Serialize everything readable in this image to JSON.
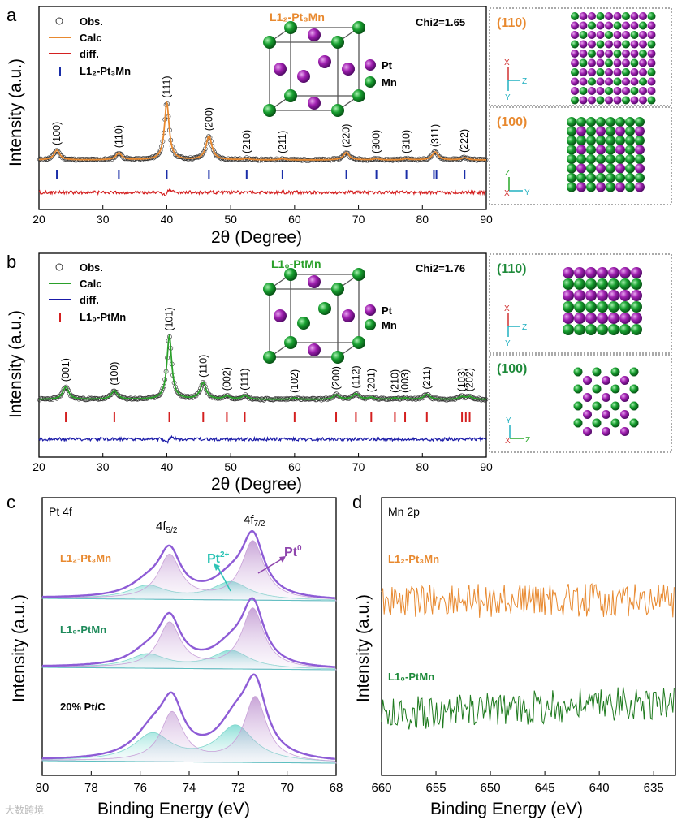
{
  "panels": {
    "a": {
      "letter": "a",
      "title": "L1₂-Pt₃Mn",
      "chi2": "Chi2=1.65",
      "legend": [
        "Obs.",
        "Calc",
        "diff.",
        "L1₂-Pt₃Mn"
      ],
      "atoms": [
        "Pt",
        "Mn"
      ],
      "views": [
        {
          "label": "(110)",
          "axes": [
            "X",
            "Z",
            "Y"
          ]
        },
        {
          "label": "(100)",
          "axes": [
            "Z",
            "X",
            "Y"
          ]
        }
      ]
    },
    "b": {
      "letter": "b",
      "title": "L1₀-PtMn",
      "chi2": "Chi2=1.76",
      "legend": [
        "Obs.",
        "Calc",
        "diff.",
        "L1₀-PtMn"
      ],
      "atoms": [
        "Pt",
        "Mn"
      ],
      "views": [
        {
          "label": "(110)",
          "axes": [
            "X",
            "Z",
            "Y"
          ]
        },
        {
          "label": "(100)",
          "axes": [
            "Y",
            "X",
            "Z"
          ]
        }
      ]
    },
    "c": {
      "letter": "c",
      "title": "Pt 4f",
      "samples": [
        "L1₂-Pt₃Mn",
        "L1₀-PtMn",
        "20% Pt/C"
      ],
      "labels": [
        "4f5/2",
        "4f7/2",
        "Pt2+",
        "Pt0"
      ]
    },
    "d": {
      "letter": "d",
      "title": "Mn 2p",
      "samples": [
        "L1₂-Pt₃Mn",
        "L1₀-PtMn"
      ]
    }
  },
  "watermark": "大数跨境",
  "chart_data": [
    {
      "panel": "a",
      "type": "line",
      "title": "L1₂-Pt₃Mn",
      "xlabel": "2θ (Degree)",
      "ylabel": "Intensity (a.u.)",
      "xlim": [
        20,
        90
      ],
      "xticks": [
        20,
        30,
        40,
        50,
        60,
        70,
        80,
        90
      ],
      "annotation": "Chi2=1.65",
      "series": [
        {
          "name": "Obs.",
          "color": "#222222"
        },
        {
          "name": "Calc",
          "color": "#e8892f"
        },
        {
          "name": "diff.",
          "color": "#d42020"
        },
        {
          "name": "L1₂-Pt₃Mn",
          "color": "#1a2ea8"
        }
      ],
      "peaks": [
        {
          "hkl": "(100)",
          "x": 22.8,
          "h": 0.17
        },
        {
          "hkl": "(110)",
          "x": 32.5,
          "h": 0.12
        },
        {
          "hkl": "(111)",
          "x": 40.0,
          "h": 1.0
        },
        {
          "hkl": "(200)",
          "x": 46.6,
          "h": 0.42
        },
        {
          "hkl": "(210)",
          "x": 52.5,
          "h": 0.02
        },
        {
          "hkl": "(211)",
          "x": 58.1,
          "h": 0.02
        },
        {
          "hkl": "(220)",
          "x": 68.1,
          "h": 0.13
        },
        {
          "hkl": "(300)",
          "x": 72.8,
          "h": 0.02
        },
        {
          "hkl": "(310)",
          "x": 77.5,
          "h": 0.02
        },
        {
          "hkl": "(311)",
          "x": 82.0,
          "h": 0.14
        },
        {
          "hkl": "(222)",
          "x": 86.6,
          "h": 0.04
        }
      ],
      "reflections": [
        22.8,
        32.5,
        40.0,
        46.6,
        52.5,
        58.1,
        68.1,
        72.8,
        77.5,
        81.8,
        82.2,
        86.6
      ]
    },
    {
      "panel": "b",
      "type": "line",
      "title": "L1₀-PtMn",
      "xlabel": "2θ (Degree)",
      "ylabel": "Intensity (a.u.)",
      "xlim": [
        20,
        90
      ],
      "xticks": [
        20,
        30,
        40,
        50,
        60,
        70,
        80,
        90
      ],
      "annotation": "Chi2=1.76",
      "series": [
        {
          "name": "Obs.",
          "color": "#222222"
        },
        {
          "name": "Calc",
          "color": "#2aa02a"
        },
        {
          "name": "diff.",
          "color": "#1a1aa8"
        },
        {
          "name": "L1₀-PtMn",
          "color": "#d42020"
        }
      ],
      "peaks": [
        {
          "hkl": "(001)",
          "x": 24.2,
          "h": 0.2
        },
        {
          "hkl": "(100)",
          "x": 31.8,
          "h": 0.14
        },
        {
          "hkl": "(101)",
          "x": 40.4,
          "h": 1.0
        },
        {
          "hkl": "(110)",
          "x": 45.7,
          "h": 0.26
        },
        {
          "hkl": "(002)",
          "x": 49.4,
          "h": 0.05
        },
        {
          "hkl": "(111)",
          "x": 52.2,
          "h": 0.06
        },
        {
          "hkl": "(102)",
          "x": 60.0,
          "h": 0.02
        },
        {
          "hkl": "(200)",
          "x": 66.5,
          "h": 0.07
        },
        {
          "hkl": "(112)",
          "x": 69.6,
          "h": 0.09
        },
        {
          "hkl": "(201)",
          "x": 72.0,
          "h": 0.03
        },
        {
          "hkl": "(210)",
          "x": 75.7,
          "h": 0.02
        },
        {
          "hkl": "(003)",
          "x": 77.3,
          "h": 0.02
        },
        {
          "hkl": "(211)",
          "x": 80.7,
          "h": 0.08
        },
        {
          "hkl": "(103)",
          "x": 86.2,
          "h": 0.04
        },
        {
          "hkl": "(202)",
          "x": 87.4,
          "h": 0.04
        }
      ],
      "reflections": [
        24.2,
        31.8,
        40.4,
        45.7,
        49.4,
        52.2,
        60.0,
        66.5,
        69.6,
        72.0,
        75.7,
        77.3,
        80.7,
        86.2,
        86.8,
        87.4
      ]
    },
    {
      "panel": "c",
      "type": "line",
      "title": "Pt 4f",
      "xlabel": "Binding Energy (eV)",
      "ylabel": "Intensity (a.u.)",
      "xlim": [
        80,
        68
      ],
      "xticks": [
        80,
        78,
        76,
        74,
        72,
        70,
        68
      ],
      "samples": [
        {
          "name": "L1₂-Pt₃Mn",
          "pt0_72": 71.4,
          "pt0_52": 74.8,
          "pt0_amp": 1.0,
          "pt2_72": 72.3,
          "pt2_52": 75.7,
          "pt2_amp": 0.3
        },
        {
          "name": "L1₀-PtMn",
          "pt0_72": 71.4,
          "pt0_52": 74.8,
          "pt0_amp": 1.0,
          "pt2_72": 72.3,
          "pt2_52": 75.7,
          "pt2_amp": 0.3
        },
        {
          "name": "20% Pt/C",
          "pt0_72": 71.3,
          "pt0_52": 74.7,
          "pt0_amp": 1.0,
          "pt2_72": 72.1,
          "pt2_52": 75.5,
          "pt2_amp": 0.55
        }
      ]
    },
    {
      "panel": "d",
      "type": "line",
      "title": "Mn 2p",
      "xlabel": "Binding Energy (eV)",
      "ylabel": "Intensity (a.u.)",
      "xlim": [
        660,
        633
      ],
      "xticks": [
        660,
        655,
        650,
        645,
        640,
        635
      ],
      "series": [
        {
          "name": "L1₂-Pt₃Mn",
          "color": "#e8892f"
        },
        {
          "name": "L1₀-PtMn",
          "color": "#1e7a1e"
        }
      ]
    }
  ]
}
